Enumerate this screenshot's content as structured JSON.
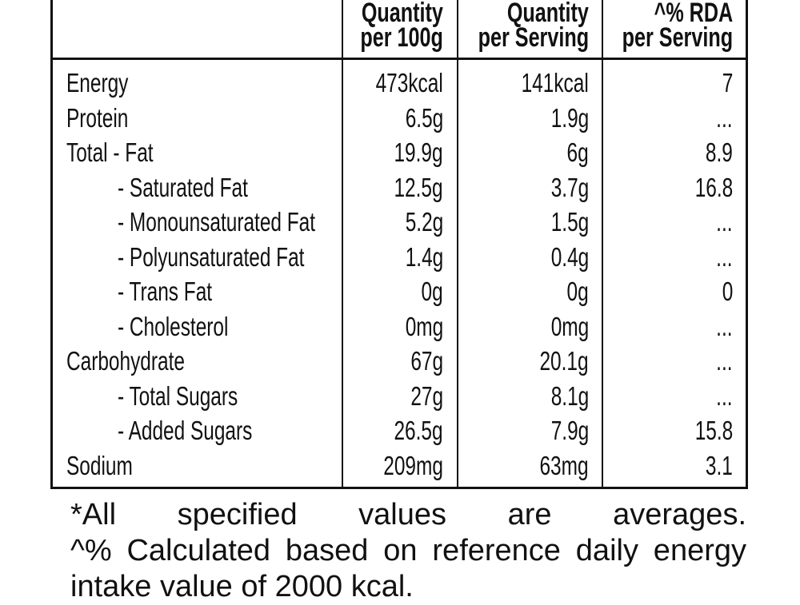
{
  "table": {
    "columns": [
      {
        "lines": [
          "Quantity",
          "per 100g"
        ]
      },
      {
        "lines": [
          "Quantity",
          "per Serving"
        ]
      },
      {
        "lines": [
          "^% RDA",
          "per Serving"
        ]
      }
    ],
    "rows": [
      {
        "label": "Energy",
        "values": [
          "473kcal",
          "141kcal",
          "7"
        ]
      },
      {
        "label": "Protein",
        "values": [
          "6.5g",
          "1.9g",
          "..."
        ]
      },
      {
        "label": "Total - Fat",
        "values": [
          "19.9g",
          "6g",
          "8.9"
        ],
        "components": [
          {
            "label": "- Saturated Fat",
            "values": [
              "12.5g",
              "3.7g",
              "16.8"
            ]
          },
          {
            "label": "- Monounsaturated Fat",
            "values": [
              "5.2g",
              "1.5g",
              "..."
            ]
          },
          {
            "label": "- Polyunsaturated Fat",
            "values": [
              "1.4g",
              "0.4g",
              "..."
            ]
          },
          {
            "label": "- Trans Fat",
            "values": [
              "0g",
              "0g",
              "0"
            ]
          },
          {
            "label": "- Cholesterol",
            "values": [
              "0mg",
              "0mg",
              "..."
            ]
          }
        ]
      },
      {
        "label": "Carbohydrate",
        "values": [
          "67g",
          "20.1g",
          "..."
        ],
        "components": [
          {
            "label": "- Total Sugars",
            "values": [
              "27g",
              "8.1g",
              "..."
            ]
          },
          {
            "label": "- Added Sugars",
            "values": [
              "26.5g",
              "7.9g",
              "15.8"
            ]
          }
        ]
      },
      {
        "label": "Sodium",
        "values": [
          "209mg",
          "63mg",
          "3.1"
        ]
      }
    ]
  },
  "footnotes": [
    "*All specified values are averages.",
    "^% Calculated based on reference daily energy intake value of 2000 kcal."
  ]
}
